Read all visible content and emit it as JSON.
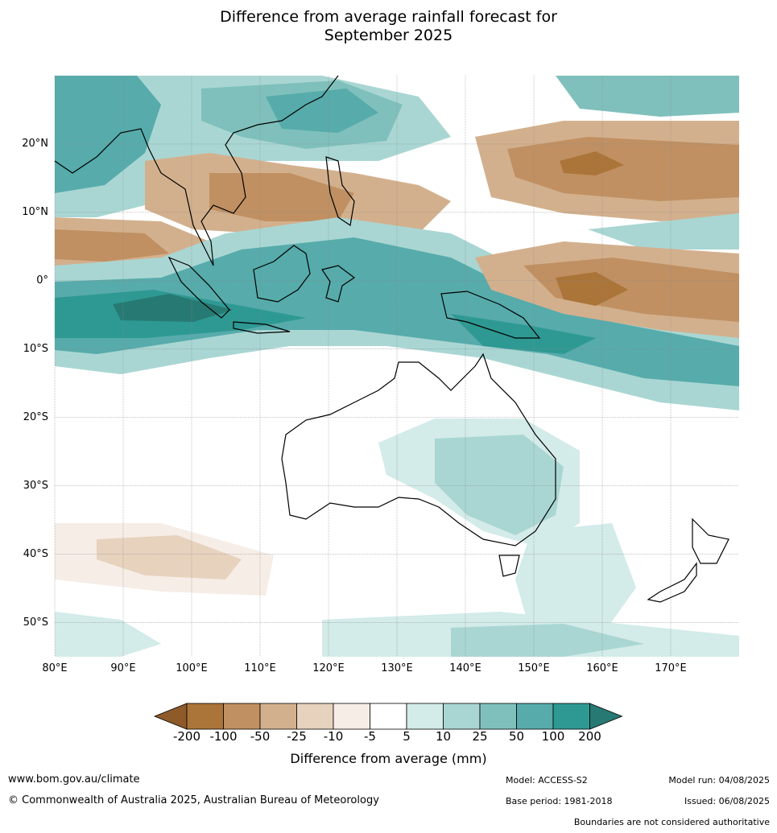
{
  "title": {
    "line1": "Difference from average rainfall forecast for",
    "line2": "September 2025"
  },
  "map": {
    "lat_labels": [
      "20°N",
      "10°N",
      "0°",
      "10°S",
      "20°S",
      "30°S",
      "40°S",
      "50°S"
    ],
    "lat_values": [
      20,
      10,
      0,
      -10,
      -20,
      -30,
      -40,
      -50
    ],
    "lon_labels": [
      "80°E",
      "90°E",
      "100°E",
      "110°E",
      "120°E",
      "130°E",
      "140°E",
      "150°E",
      "160°E",
      "170°E"
    ],
    "lon_values": [
      80,
      90,
      100,
      110,
      120,
      130,
      140,
      150,
      160,
      170
    ],
    "lat_range": [
      -55,
      30
    ],
    "lon_range": [
      80,
      180
    ]
  },
  "colorbar": {
    "labels": [
      "-200",
      "-100",
      "-50",
      "-25",
      "-10",
      "-5",
      "5",
      "10",
      "25",
      "50",
      "100",
      "200"
    ],
    "colors": [
      "#8f5a2a",
      "#ab7439",
      "#c09062",
      "#d3b08d",
      "#e7d2be",
      "#f6ede6",
      "#ffffff",
      "#d3ebe9",
      "#a9d6d3",
      "#7fc0bc",
      "#57abab",
      "#2e9993",
      "#277a73"
    ],
    "title": "Difference from average (mm)"
  },
  "footer": {
    "url": "www.bom.gov.au/climate",
    "copyright": "© Commonwealth of Australia 2025, Australian Bureau of Meteorology",
    "model": "Model: ACCESS-S2",
    "base_period": "Base period: 1981-2018",
    "model_run": "Model run: 04/08/2025",
    "issued": "Issued: 06/08/2025",
    "disclaimer": "Boundaries are not considered authoritative"
  }
}
